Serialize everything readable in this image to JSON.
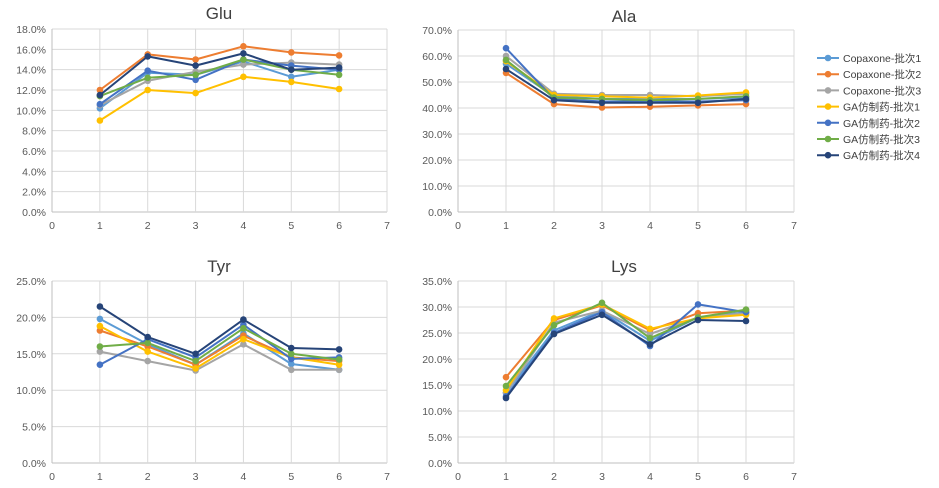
{
  "series_styles": [
    {
      "name": "Copaxone-批次1",
      "color": "#5B9BD5"
    },
    {
      "name": "Copaxone-批次2",
      "color": "#ED7D31"
    },
    {
      "name": "Copaxone-批次3",
      "color": "#A5A5A5"
    },
    {
      "name": "GA仿制药-批次1",
      "color": "#FFC000"
    },
    {
      "name": "GA仿制药-批次2",
      "color": "#4472C4"
    },
    {
      "name": "GA仿制药-批次3",
      "color": "#70AD47"
    },
    {
      "name": "GA仿制药-批次4",
      "color": "#264478"
    }
  ],
  "chart_data": [
    {
      "type": "line",
      "title": "Glu",
      "xlim": [
        0,
        7
      ],
      "xticks": [
        0,
        1,
        2,
        3,
        4,
        5,
        6,
        7
      ],
      "ylim": [
        0,
        18
      ],
      "yticks": [
        0,
        2,
        4,
        6,
        8,
        10,
        12,
        14,
        16,
        18
      ],
      "ytick_labels": [
        "0.0%",
        "2.0%",
        "4.0%",
        "6.0%",
        "8.0%",
        "10.0%",
        "12.0%",
        "14.0%",
        "16.0%",
        "18.0%"
      ],
      "x": [
        1,
        2,
        3,
        4,
        5,
        6
      ],
      "series": [
        {
          "name": "Copaxone-批次1",
          "values": [
            10.2,
            13.7,
            13.5,
            14.8,
            13.3,
            14.0
          ]
        },
        {
          "name": "Copaxone-批次2",
          "values": [
            12.0,
            15.5,
            15.0,
            16.3,
            15.7,
            15.4
          ]
        },
        {
          "name": "Copaxone-批次3",
          "values": [
            10.5,
            12.9,
            13.8,
            14.5,
            14.7,
            14.5
          ]
        },
        {
          "name": "GA仿制药-批次1",
          "values": [
            9.0,
            12.0,
            11.7,
            13.3,
            12.8,
            12.1
          ]
        },
        {
          "name": "GA仿制药-批次2",
          "values": [
            10.6,
            13.9,
            13.0,
            15.0,
            14.4,
            14.0
          ]
        },
        {
          "name": "GA仿制药-批次3",
          "values": [
            11.4,
            13.2,
            13.5,
            15.0,
            14.0,
            13.5
          ]
        },
        {
          "name": "GA仿制药-批次4",
          "values": [
            11.5,
            15.3,
            14.4,
            15.6,
            14.0,
            14.2
          ]
        }
      ]
    },
    {
      "type": "line",
      "title": "Ala",
      "xlim": [
        0,
        7
      ],
      "xticks": [
        0,
        1,
        2,
        3,
        4,
        5,
        6,
        7
      ],
      "ylim": [
        0,
        70
      ],
      "yticks": [
        0,
        10,
        20,
        30,
        40,
        50,
        60,
        70
      ],
      "ytick_labels": [
        "0.0%",
        "10.0%",
        "20.0%",
        "30.0%",
        "40.0%",
        "50.0%",
        "60.0%",
        "70.0%"
      ],
      "x": [
        1,
        2,
        3,
        4,
        5,
        6
      ],
      "series": [
        {
          "name": "Copaxone-批次1",
          "values": [
            57.0,
            44.5,
            43.5,
            43.5,
            43.5,
            44.0
          ]
        },
        {
          "name": "Copaxone-批次2",
          "values": [
            53.5,
            41.5,
            40.2,
            40.5,
            41.0,
            41.5
          ]
        },
        {
          "name": "Copaxone-批次3",
          "values": [
            60.0,
            45.5,
            45.0,
            45.0,
            44.5,
            45.5
          ]
        },
        {
          "name": "GA仿制药-批次1",
          "values": [
            58.0,
            45.0,
            44.5,
            44.0,
            44.8,
            46.0
          ]
        },
        {
          "name": "GA仿制药-批次2",
          "values": [
            63.0,
            43.5,
            42.5,
            42.5,
            42.5,
            43.0
          ]
        },
        {
          "name": "GA仿制药-批次3",
          "values": [
            58.5,
            44.0,
            43.5,
            43.0,
            43.5,
            44.5
          ]
        },
        {
          "name": "GA仿制药-批次4",
          "values": [
            55.0,
            43.0,
            42.0,
            42.0,
            42.0,
            43.5
          ]
        }
      ]
    },
    {
      "type": "line",
      "title": "Tyr",
      "xlim": [
        0,
        7
      ],
      "xticks": [
        0,
        1,
        2,
        3,
        4,
        5,
        6,
        7
      ],
      "ylim": [
        0,
        25
      ],
      "yticks": [
        0,
        5,
        10,
        15,
        20,
        25
      ],
      "ytick_labels": [
        "0.0%",
        "5.0%",
        "10.0%",
        "15.0%",
        "20.0%",
        "25.0%"
      ],
      "x": [
        1,
        2,
        3,
        4,
        5,
        6
      ],
      "series": [
        {
          "name": "Copaxone-批次1",
          "values": [
            19.8,
            16.3,
            13.5,
            17.8,
            13.6,
            12.8
          ]
        },
        {
          "name": "Copaxone-批次2",
          "values": [
            18.2,
            16.0,
            13.5,
            17.5,
            14.5,
            14.0
          ]
        },
        {
          "name": "Copaxone-批次3",
          "values": [
            15.3,
            14.0,
            12.7,
            16.3,
            12.8,
            12.8
          ]
        },
        {
          "name": "GA仿制药-批次1",
          "values": [
            18.8,
            15.3,
            13.0,
            17.0,
            14.5,
            13.5
          ]
        },
        {
          "name": "GA仿制药-批次2",
          "values": [
            13.5,
            17.0,
            14.5,
            19.0,
            14.3,
            14.5
          ]
        },
        {
          "name": "GA仿制药-批次3",
          "values": [
            16.0,
            16.5,
            14.0,
            18.5,
            15.0,
            14.2
          ]
        },
        {
          "name": "GA仿制药-批次4",
          "values": [
            21.5,
            17.3,
            15.0,
            19.7,
            15.8,
            15.6
          ]
        }
      ]
    },
    {
      "type": "line",
      "title": "Lys",
      "xlim": [
        0,
        7
      ],
      "xticks": [
        0,
        1,
        2,
        3,
        4,
        5,
        6,
        7
      ],
      "ylim": [
        0,
        35
      ],
      "yticks": [
        0,
        5,
        10,
        15,
        20,
        25,
        30,
        35
      ],
      "ytick_labels": [
        "0.0%",
        "5.0%",
        "10.0%",
        "15.0%",
        "20.0%",
        "25.0%",
        "30.0%",
        "35.0%"
      ],
      "x": [
        1,
        2,
        3,
        4,
        5,
        6
      ],
      "series": [
        {
          "name": "Copaxone-批次1",
          "values": [
            13.5,
            25.5,
            29.3,
            23.5,
            28.0,
            29.0
          ]
        },
        {
          "name": "Copaxone-批次2",
          "values": [
            16.5,
            27.5,
            30.3,
            25.5,
            28.8,
            29.3
          ]
        },
        {
          "name": "Copaxone-批次3",
          "values": [
            13.5,
            27.0,
            29.3,
            24.8,
            28.0,
            28.8
          ]
        },
        {
          "name": "GA仿制药-批次1",
          "values": [
            14.0,
            27.8,
            30.5,
            25.8,
            27.8,
            28.5
          ]
        },
        {
          "name": "GA仿制药-批次2",
          "values": [
            12.8,
            25.0,
            29.0,
            22.5,
            30.5,
            29.0
          ]
        },
        {
          "name": "GA仿制药-批次3",
          "values": [
            14.8,
            26.5,
            30.8,
            24.0,
            28.0,
            29.5
          ]
        },
        {
          "name": "GA仿制药-批次4",
          "values": [
            12.5,
            24.8,
            28.5,
            22.8,
            27.5,
            27.3
          ]
        }
      ]
    }
  ]
}
